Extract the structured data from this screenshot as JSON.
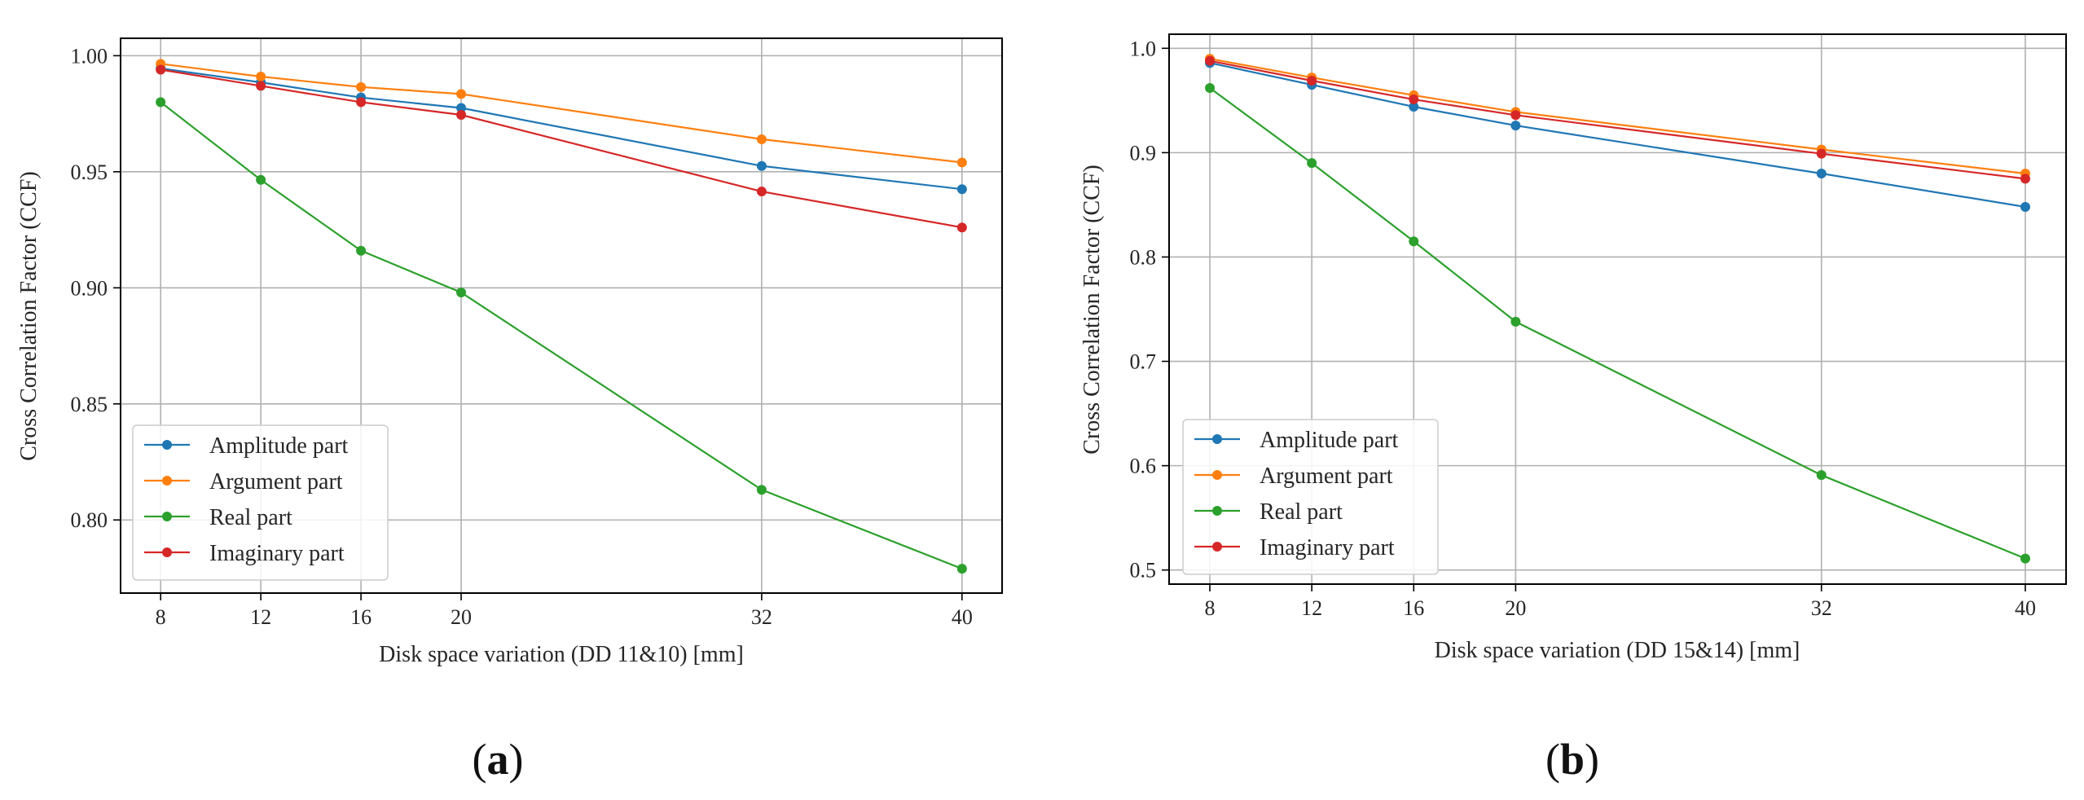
{
  "chart_data": [
    {
      "type": "line",
      "panel_label": "a",
      "xlabel": "Disk space variation (DD 11&10) [mm]",
      "ylabel": "Cross Correlation Factor (CCF)",
      "x": [
        8,
        12,
        16,
        20,
        32,
        40
      ],
      "xlim": [
        6.4,
        41.6
      ],
      "ylim": [
        0.7685,
        1.0075
      ],
      "xticks": [
        "8",
        "12",
        "16",
        "20",
        "32",
        "40"
      ],
      "yticks": [
        0.8,
        0.85,
        0.9,
        0.95,
        1.0
      ],
      "ytick_labels": [
        "0.80",
        "0.85",
        "0.90",
        "0.95",
        "1.00"
      ],
      "grid": true,
      "legend_position": "bottom-left",
      "series": [
        {
          "name": "Amplitude part",
          "color": "#1f77b4",
          "values": [
            0.9945,
            0.9885,
            0.982,
            0.9775,
            0.9525,
            0.9425
          ]
        },
        {
          "name": "Argument part",
          "color": "#ff7f0e",
          "values": [
            0.9965,
            0.991,
            0.9865,
            0.9835,
            0.964,
            0.954
          ]
        },
        {
          "name": "Real part",
          "color": "#2ca02c",
          "values": [
            0.98,
            0.9465,
            0.916,
            0.898,
            0.813,
            0.779
          ]
        },
        {
          "name": "Imaginary part",
          "color": "#d62728",
          "values": [
            0.994,
            0.987,
            0.98,
            0.9745,
            0.9415,
            0.926
          ]
        }
      ]
    },
    {
      "type": "line",
      "panel_label": "b",
      "xlabel": "Disk space variation (DD 15&14) [mm]",
      "ylabel": "Cross Correlation Factor (CCF)",
      "x": [
        8,
        12,
        16,
        20,
        32,
        40
      ],
      "xlim": [
        6.4,
        41.6
      ],
      "ylim": [
        0.4865,
        1.0135
      ],
      "xticks": [
        "8",
        "12",
        "16",
        "20",
        "32",
        "40"
      ],
      "yticks": [
        0.5,
        0.6,
        0.7,
        0.8,
        0.9,
        1.0
      ],
      "ytick_labels": [
        "0.5",
        "0.6",
        "0.7",
        "0.8",
        "0.9",
        "1.0"
      ],
      "grid": true,
      "legend_position": "bottom-left",
      "series": [
        {
          "name": "Amplitude part",
          "color": "#1f77b4",
          "values": [
            0.986,
            0.965,
            0.944,
            0.926,
            0.88,
            0.848
          ]
        },
        {
          "name": "Argument part",
          "color": "#ff7f0e",
          "values": [
            0.99,
            0.972,
            0.955,
            0.939,
            0.903,
            0.88
          ]
        },
        {
          "name": "Real part",
          "color": "#2ca02c",
          "values": [
            0.962,
            0.89,
            0.815,
            0.738,
            0.591,
            0.511
          ]
        },
        {
          "name": "Imaginary part",
          "color": "#d62728",
          "values": [
            0.988,
            0.969,
            0.951,
            0.936,
            0.899,
            0.875
          ]
        }
      ]
    }
  ]
}
